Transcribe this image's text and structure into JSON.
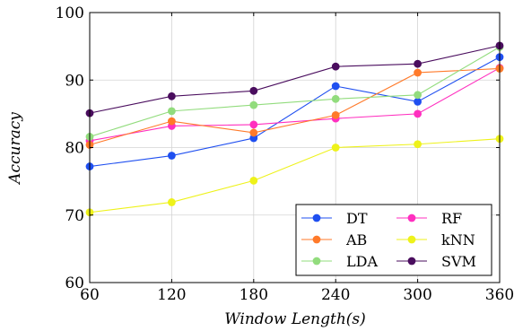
{
  "chart_data": {
    "type": "line",
    "xlabel": "Window Length(s)",
    "ylabel": "Accuracy",
    "x": [
      60,
      120,
      180,
      240,
      300,
      360
    ],
    "x_ticks": [
      "60",
      "120",
      "180",
      "240",
      "300",
      "360"
    ],
    "y_ticks": [
      "60",
      "70",
      "80",
      "90",
      "100"
    ],
    "xlim": [
      60,
      360
    ],
    "ylim": [
      60,
      100
    ],
    "grid": true,
    "legend_position": "bottom-right",
    "series": [
      {
        "name": "DT",
        "color": "#1f4ff0",
        "values": [
          77.2,
          78.8,
          81.4,
          89.1,
          86.8,
          93.4
        ]
      },
      {
        "name": "RF",
        "color": "#ff2fbf",
        "values": [
          81.0,
          83.2,
          83.4,
          84.3,
          85.0,
          91.8
        ]
      },
      {
        "name": "AB",
        "color": "#ff7a2a",
        "values": [
          80.4,
          83.9,
          82.2,
          84.8,
          91.1,
          91.7
        ]
      },
      {
        "name": "kNN",
        "color": "#eef21a",
        "values": [
          70.4,
          71.9,
          75.1,
          80.0,
          80.5,
          81.3
        ]
      },
      {
        "name": "LDA",
        "color": "#92dc7d",
        "values": [
          81.6,
          85.4,
          86.3,
          87.2,
          87.8,
          94.9
        ]
      },
      {
        "name": "SVM",
        "color": "#4a0d5e",
        "values": [
          85.1,
          87.6,
          88.4,
          92.0,
          92.4,
          95.1
        ]
      }
    ]
  }
}
